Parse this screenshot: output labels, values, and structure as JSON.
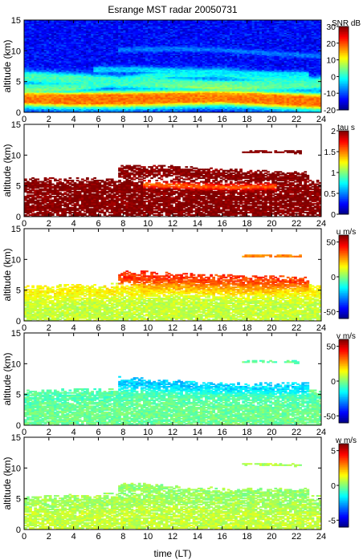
{
  "figure": {
    "title": "Esrange MST radar 20050731",
    "xlabel": "time (LT)",
    "xlim": [
      0,
      24
    ],
    "xticks": [
      0,
      2,
      4,
      6,
      8,
      10,
      12,
      14,
      16,
      18,
      20,
      22,
      24
    ]
  },
  "colormap": [
    "#00007f",
    "#0000ff",
    "#007fff",
    "#00ffff",
    "#7fff7f",
    "#ffff00",
    "#ff7f00",
    "#ff0000",
    "#7f0000"
  ],
  "chart_data": [
    {
      "type": "heatmap",
      "ylabel": "altitude (km)",
      "ylim": [
        0,
        15
      ],
      "yticks": [
        0,
        5,
        10,
        15
      ],
      "colorbar_label": "SNR dB",
      "clim": [
        -20,
        30
      ],
      "cticks": [
        -20,
        -10,
        0,
        10,
        20,
        30
      ],
      "fill": "full",
      "layers": [
        {
          "t": [
            0,
            4,
            8,
            12,
            16,
            20,
            24
          ],
          "alt": [
            2.4,
            2.2,
            2.2,
            2.4,
            2.6,
            2.2,
            1.8
          ],
          "thick": 1.4,
          "value": 18
        },
        {
          "t": [
            0,
            4,
            8,
            12,
            16,
            20,
            24
          ],
          "alt": [
            5.8,
            5.4,
            5.0,
            4.8,
            4.4,
            4.6,
            4.8
          ],
          "thick": 1.0,
          "value": 2
        },
        {
          "t": [
            0,
            4,
            8,
            12,
            16,
            20,
            22.6
          ],
          "alt": [
            4.0,
            4.2,
            5.2,
            6.4,
            6.4,
            5.6,
            5.8
          ],
          "thick": 0.8,
          "value": 0
        },
        {
          "t": [
            6,
            10,
            14,
            18,
            22.6
          ],
          "alt": [
            7.0,
            7.0,
            6.6,
            6.4,
            6.2
          ],
          "thick": 0.5,
          "value": -4
        },
        {
          "t": [
            8,
            12,
            16,
            20,
            24
          ],
          "alt": [
            10.2,
            10.4,
            10.2,
            9.6,
            9.2
          ],
          "thick": 0.4,
          "value": -8
        }
      ]
    },
    {
      "type": "heatmap",
      "ylabel": "altitude (km)",
      "ylim": [
        0,
        15
      ],
      "yticks": [
        0,
        5,
        10,
        15
      ],
      "colorbar_label": "tau s",
      "clim": [
        0,
        2
      ],
      "cticks": [
        0,
        0.5,
        1,
        1.5,
        2
      ],
      "fill": "sparse",
      "layers": [
        {
          "t": [
            0,
            8,
            16,
            24
          ],
          "alt": [
            2.0,
            2.0,
            2.0,
            2.0
          ],
          "thick": 2.4,
          "value": 2
        },
        {
          "t": [
            0,
            8,
            16,
            24
          ],
          "alt": [
            4.8,
            4.6,
            4.4,
            4.4
          ],
          "thick": 1.2,
          "value": 2
        },
        {
          "t": [
            8,
            12,
            16,
            20,
            22.6
          ],
          "alt": [
            7.2,
            7.2,
            6.8,
            6.4,
            6.2
          ],
          "thick": 0.8,
          "value": 2
        },
        {
          "t": [
            10,
            13,
            16,
            20
          ],
          "alt": [
            5.2,
            5.0,
            4.8,
            4.9
          ],
          "thick": 0.4,
          "value": 1.1
        },
        {
          "t": [
            18,
            20,
            22
          ],
          "alt": [
            10.6,
            10.6,
            10.5
          ],
          "thick": 0.15,
          "value": 2
        }
      ]
    },
    {
      "type": "heatmap",
      "ylabel": "altitude (km)",
      "ylim": [
        0,
        15
      ],
      "yticks": [
        0,
        5,
        10,
        15
      ],
      "colorbar_label": "u m/s",
      "clim": [
        -60,
        60
      ],
      "cticks": [
        -50,
        0,
        50
      ],
      "fill": "sparse",
      "layers": [
        {
          "t": [
            0,
            8,
            16,
            24
          ],
          "alt": [
            2.0,
            2.0,
            2.0,
            2.0
          ],
          "thick": 2.6,
          "value": 8
        },
        {
          "t": [
            0,
            4,
            8,
            12,
            16,
            20,
            24
          ],
          "alt": [
            4.4,
            4.6,
            4.8,
            5.2,
            5.0,
            4.8,
            4.6
          ],
          "thick": 1.0,
          "value": 18
        },
        {
          "t": [
            8,
            11,
            14,
            18,
            22.6
          ],
          "alt": [
            7.0,
            6.8,
            6.4,
            6.2,
            6.0
          ],
          "thick": 0.9,
          "value": 40
        },
        {
          "t": [
            10,
            13,
            16,
            20
          ],
          "alt": [
            5.6,
            5.4,
            5.2,
            5.2
          ],
          "thick": 0.6,
          "value": 30
        },
        {
          "t": [
            18,
            20,
            22
          ],
          "alt": [
            10.6,
            10.6,
            10.5
          ],
          "thick": 0.15,
          "value": 30
        }
      ]
    },
    {
      "type": "heatmap",
      "ylabel": "altitude (km)",
      "ylim": [
        0,
        15
      ],
      "yticks": [
        0,
        5,
        10,
        15
      ],
      "colorbar_label": "v m/s",
      "clim": [
        -60,
        60
      ],
      "cticks": [
        -50,
        0,
        50
      ],
      "fill": "sparse",
      "layers": [
        {
          "t": [
            0,
            8,
            16,
            24
          ],
          "alt": [
            2.0,
            2.0,
            2.0,
            2.0
          ],
          "thick": 2.6,
          "value": -2
        },
        {
          "t": [
            0,
            4,
            8,
            12,
            16,
            20,
            24
          ],
          "alt": [
            4.4,
            4.6,
            4.6,
            4.8,
            4.6,
            4.6,
            4.4
          ],
          "thick": 1.0,
          "value": -6
        },
        {
          "t": [
            8,
            11,
            14,
            18,
            22.6
          ],
          "alt": [
            6.8,
            6.4,
            6.0,
            5.8,
            5.8
          ],
          "thick": 0.8,
          "value": -22
        },
        {
          "t": [
            18,
            20,
            22
          ],
          "alt": [
            10.4,
            10.4,
            10.3
          ],
          "thick": 0.15,
          "value": -4
        }
      ]
    },
    {
      "type": "heatmap",
      "ylabel": "altitude (km)",
      "ylim": [
        0,
        15
      ],
      "yticks": [
        0,
        5,
        10,
        15
      ],
      "colorbar_label": "w m/s",
      "clim": [
        -6,
        6
      ],
      "cticks": [
        -5,
        0,
        5
      ],
      "fill": "dense",
      "layers": [
        {
          "t": [
            0,
            8,
            16,
            24
          ],
          "alt": [
            1.8,
            1.8,
            1.8,
            1.8
          ],
          "thick": 2.8,
          "value": 0.8
        },
        {
          "t": [
            0,
            4,
            8,
            12,
            16,
            20,
            24
          ],
          "alt": [
            4.2,
            4.4,
            4.6,
            4.8,
            4.4,
            4.2,
            4.0
          ],
          "thick": 1.0,
          "value": 0.3
        },
        {
          "t": [
            8,
            11,
            14,
            18,
            22.6
          ],
          "alt": [
            6.8,
            6.4,
            6.0,
            5.8,
            5.8
          ],
          "thick": 0.7,
          "value": 0.2
        },
        {
          "t": [
            18,
            20,
            22
          ],
          "alt": [
            10.6,
            10.6,
            10.5
          ],
          "thick": 0.15,
          "value": 0.5
        }
      ]
    }
  ]
}
